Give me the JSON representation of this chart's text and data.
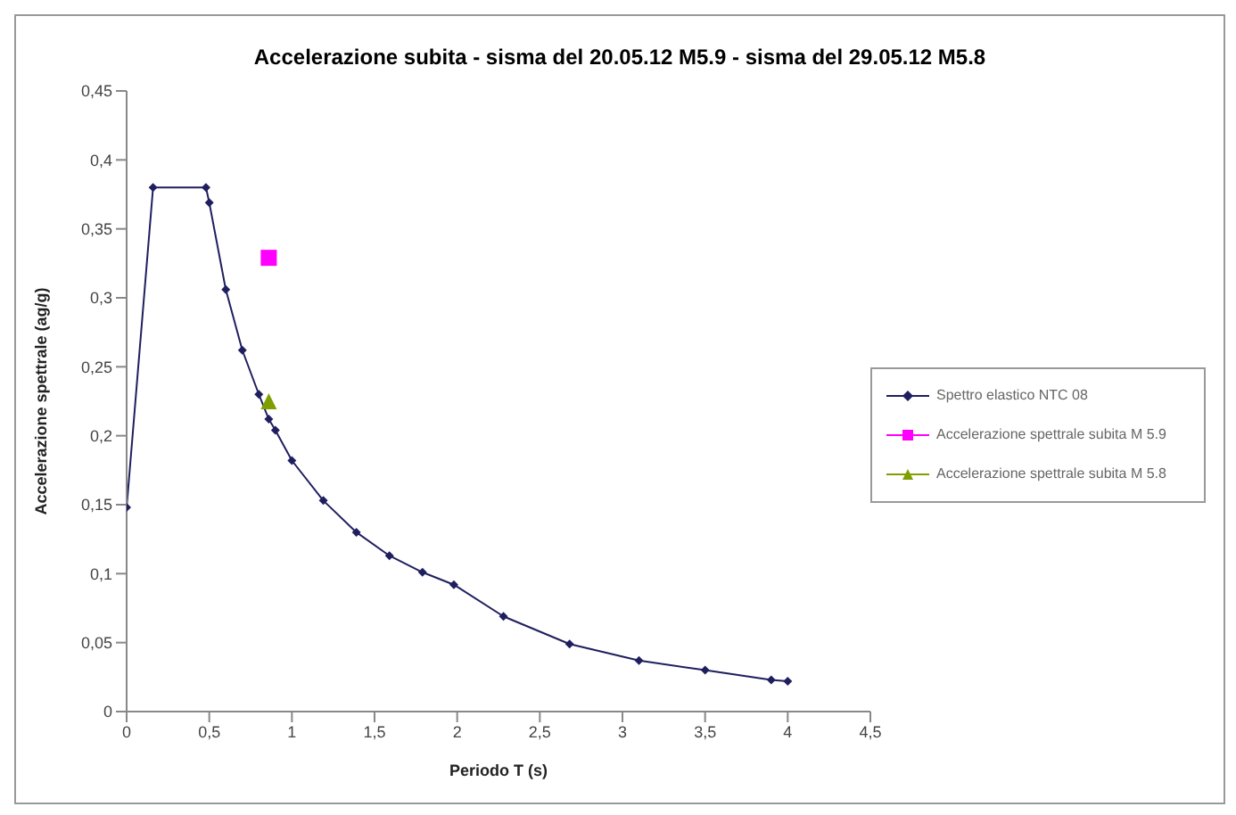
{
  "chart_data": {
    "type": "line",
    "title": "Accelerazione subita - sisma del 20.05.12 M5.9 - sisma del 29.05.12 M5.8",
    "xlabel": "Periodo T (s)",
    "ylabel": "Accelerazione spettrale (ag/g)",
    "xlim": [
      0,
      4.5
    ],
    "xticks": [
      0,
      {
        "value": 0.5,
        "label": "0,5"
      },
      1,
      {
        "value": 1.5,
        "label": "1,5"
      },
      2,
      {
        "value": 2.5,
        "label": "2,5"
      },
      3,
      {
        "value": 3.5,
        "label": "3,5"
      },
      4,
      {
        "value": 4.5,
        "label": "4,5"
      }
    ],
    "ylim": [
      0,
      0.45
    ],
    "yticks": [
      0,
      {
        "value": 0.05,
        "label": "0,05"
      },
      {
        "value": 0.1,
        "label": "0,1"
      },
      {
        "value": 0.15,
        "label": "0,15"
      },
      {
        "value": 0.2,
        "label": "0,2"
      },
      {
        "value": 0.25,
        "label": "0,25"
      },
      {
        "value": 0.3,
        "label": "0,3"
      },
      {
        "value": 0.35,
        "label": "0,35"
      },
      {
        "value": 0.4,
        "label": "0,4"
      },
      {
        "value": 0.45,
        "label": "0,45"
      }
    ],
    "grid": false,
    "legend": "right",
    "series": [
      {
        "name": "Spettro elastico NTC 08",
        "color": "#1f1f5f",
        "marker": "diamond",
        "x": [
          0,
          0.16,
          0.48,
          0.5,
          0.6,
          0.7,
          0.8,
          0.86,
          0.9,
          1.0,
          1.19,
          1.39,
          1.59,
          1.79,
          1.98,
          2.28,
          2.68,
          3.1,
          3.5,
          3.9,
          4.0
        ],
        "values": [
          0.148,
          0.38,
          0.38,
          0.369,
          0.306,
          0.262,
          0.23,
          0.212,
          0.204,
          0.182,
          0.153,
          0.13,
          0.113,
          0.101,
          0.092,
          0.069,
          0.049,
          0.037,
          0.03,
          0.023,
          0.022
        ]
      },
      {
        "name": "Accelerazione spettrale subita M 5.9",
        "type": "scatter",
        "color": "#ff00ff",
        "marker": "square",
        "x": [
          0.86
        ],
        "values": [
          0.329
        ]
      },
      {
        "name": "Accelerazione spettrale subita M 5.8",
        "type": "scatter",
        "color": "#7f9f00",
        "marker": "triangle",
        "x": [
          0.86
        ],
        "values": [
          0.225
        ]
      }
    ]
  }
}
